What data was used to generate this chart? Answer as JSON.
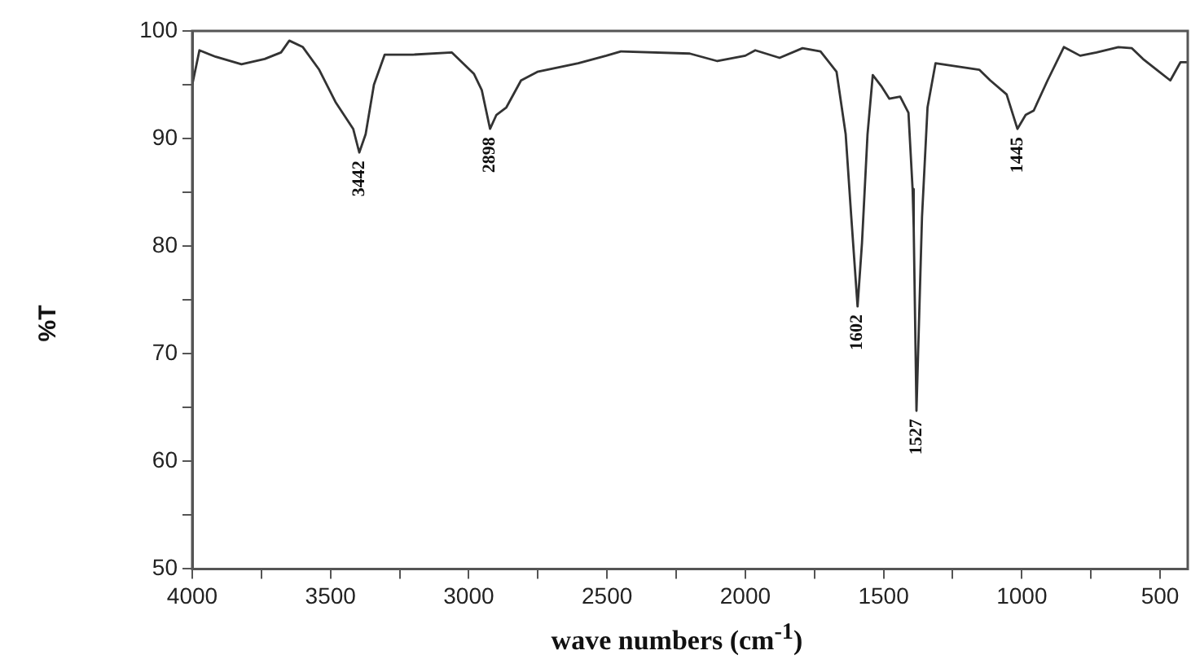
{
  "chart_data": {
    "type": "line",
    "xlabel": "wave numbers (cm$^{-1}$)",
    "ylabel": "%T",
    "x": [
      4000,
      3974,
      3915,
      3822,
      3738,
      3679,
      3649,
      3600,
      3541,
      3482,
      3418,
      3396,
      3373,
      3343,
      3304,
      3201,
      3061,
      2981,
      2953,
      2923,
      2900,
      2864,
      2811,
      2752,
      2604,
      2503,
      2450,
      2201,
      2101,
      2000,
      1964,
      1876,
      1793,
      1728,
      1670,
      1637,
      1617,
      1594,
      1578,
      1558,
      1539,
      1509,
      1479,
      1440,
      1410,
      1395,
      1391,
      1381,
      1361,
      1341,
      1312,
      1233,
      1154,
      1114,
      1055,
      1016,
      986,
      957,
      907,
      848,
      789,
      730,
      651,
      602,
      562,
      503,
      463,
      426,
      400
    ],
    "series": [
      {
        "color": "#333333",
        "values": [
          95,
          98.2,
          97.6,
          96.9,
          97.4,
          98,
          99.1,
          98.5,
          96.4,
          93.4,
          90.9,
          88.7,
          90.4,
          95,
          97.8,
          97.8,
          98,
          96,
          94.5,
          90.9,
          92.2,
          92.9,
          95.4,
          96.2,
          97,
          97.7,
          98.1,
          97.9,
          97.2,
          97.7,
          98.2,
          97.5,
          98.4,
          98.1,
          96.2,
          90.4,
          82.8,
          74.4,
          80.3,
          90.4,
          95.9,
          94.9,
          93.7,
          93.9,
          92.4,
          85.3,
          81.7,
          64.7,
          82.7,
          92.9,
          97,
          96.7,
          96.4,
          95.4,
          94.1,
          90.9,
          92.2,
          92.6,
          95.4,
          98.5,
          97.7,
          98,
          98.5,
          98.4,
          97.4,
          96.2,
          95.4,
          97.1,
          97.1
        ]
      }
    ],
    "xlim": [
      4000,
      400
    ],
    "ylim": [
      50,
      100
    ],
    "xticks": [
      4000,
      {
        "value": 3750,
        "label": null
      },
      3500,
      {
        "value": 3250,
        "label": null
      },
      3000,
      {
        "value": 2750,
        "label": null
      },
      2500,
      {
        "value": 2250,
        "label": null
      },
      2000,
      {
        "value": 1750,
        "label": null
      },
      1500,
      {
        "value": 1250,
        "label": null
      },
      1000,
      {
        "value": 750,
        "label": null
      },
      500
    ],
    "yticks": [
      50,
      {
        "value": 55,
        "label": null
      },
      60,
      {
        "value": 65,
        "label": null
      },
      70,
      {
        "value": 75,
        "label": null
      },
      80,
      {
        "value": 85,
        "label": null
      },
      90,
      {
        "value": 95,
        "label": null
      },
      100
    ],
    "annotations": [
      {
        "text": "3442",
        "x": 3396,
        "y": 88.7
      },
      {
        "text": "2898",
        "x": 2923,
        "y": 90.9
      },
      {
        "text": "1602",
        "x": 1594,
        "y": 74.4
      },
      {
        "text": "1527",
        "x": 1381,
        "y": 64.7
      },
      {
        "text": "1445",
        "x": 1016,
        "y": 90.9
      }
    ],
    "grid": false,
    "legend": false,
    "marker": "none",
    "line_style": "solid"
  }
}
